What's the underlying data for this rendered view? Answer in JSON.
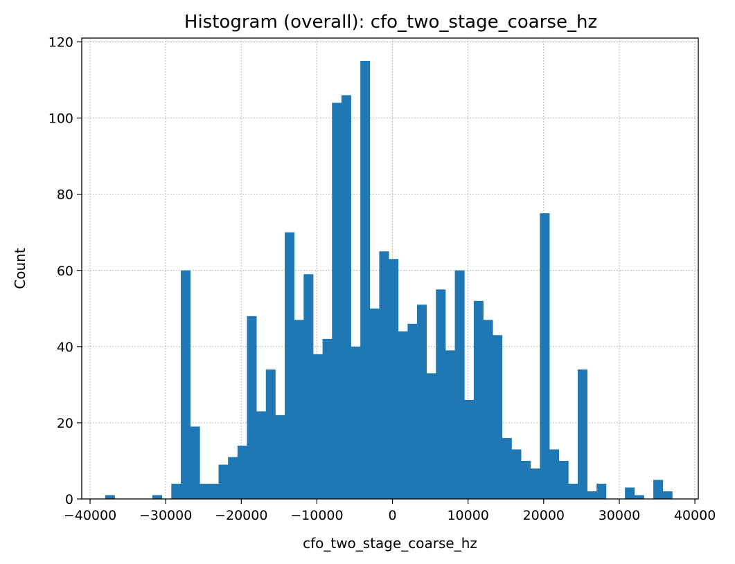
{
  "chart_data": {
    "type": "bar",
    "title": "Histogram (overall): cfo_two_stage_coarse_hz",
    "xlabel": "cfo_two_stage_coarse_hz",
    "ylabel": "Count",
    "xlim": [
      -40000,
      40000
    ],
    "ylim": [
      0,
      120
    ],
    "xticks": [
      -40000,
      -30000,
      -20000,
      -10000,
      0,
      10000,
      20000,
      30000,
      40000
    ],
    "xtick_labels": [
      "−40000",
      "−30000",
      "−20000",
      "−10000",
      "0",
      "10000",
      "20000",
      "30000",
      "40000"
    ],
    "yticks": [
      0,
      20,
      40,
      60,
      80,
      100,
      120
    ],
    "ytick_labels": [
      "0",
      "20",
      "40",
      "60",
      "80",
      "100",
      "120"
    ],
    "grid": true,
    "color": "#1f77b4",
    "bin_start": -38000,
    "bin_width": 1250,
    "values": [
      1,
      0,
      0,
      0,
      0,
      1,
      0,
      4,
      60,
      19,
      4,
      4,
      9,
      11,
      14,
      48,
      23,
      34,
      22,
      70,
      47,
      59,
      38,
      42,
      104,
      106,
      40,
      115,
      50,
      65,
      63,
      44,
      46,
      51,
      33,
      55,
      39,
      60,
      26,
      52,
      47,
      43,
      16,
      13,
      10,
      8,
      75,
      13,
      10,
      4,
      34,
      2,
      4,
      0,
      0,
      3,
      1,
      0,
      5,
      2
    ]
  }
}
